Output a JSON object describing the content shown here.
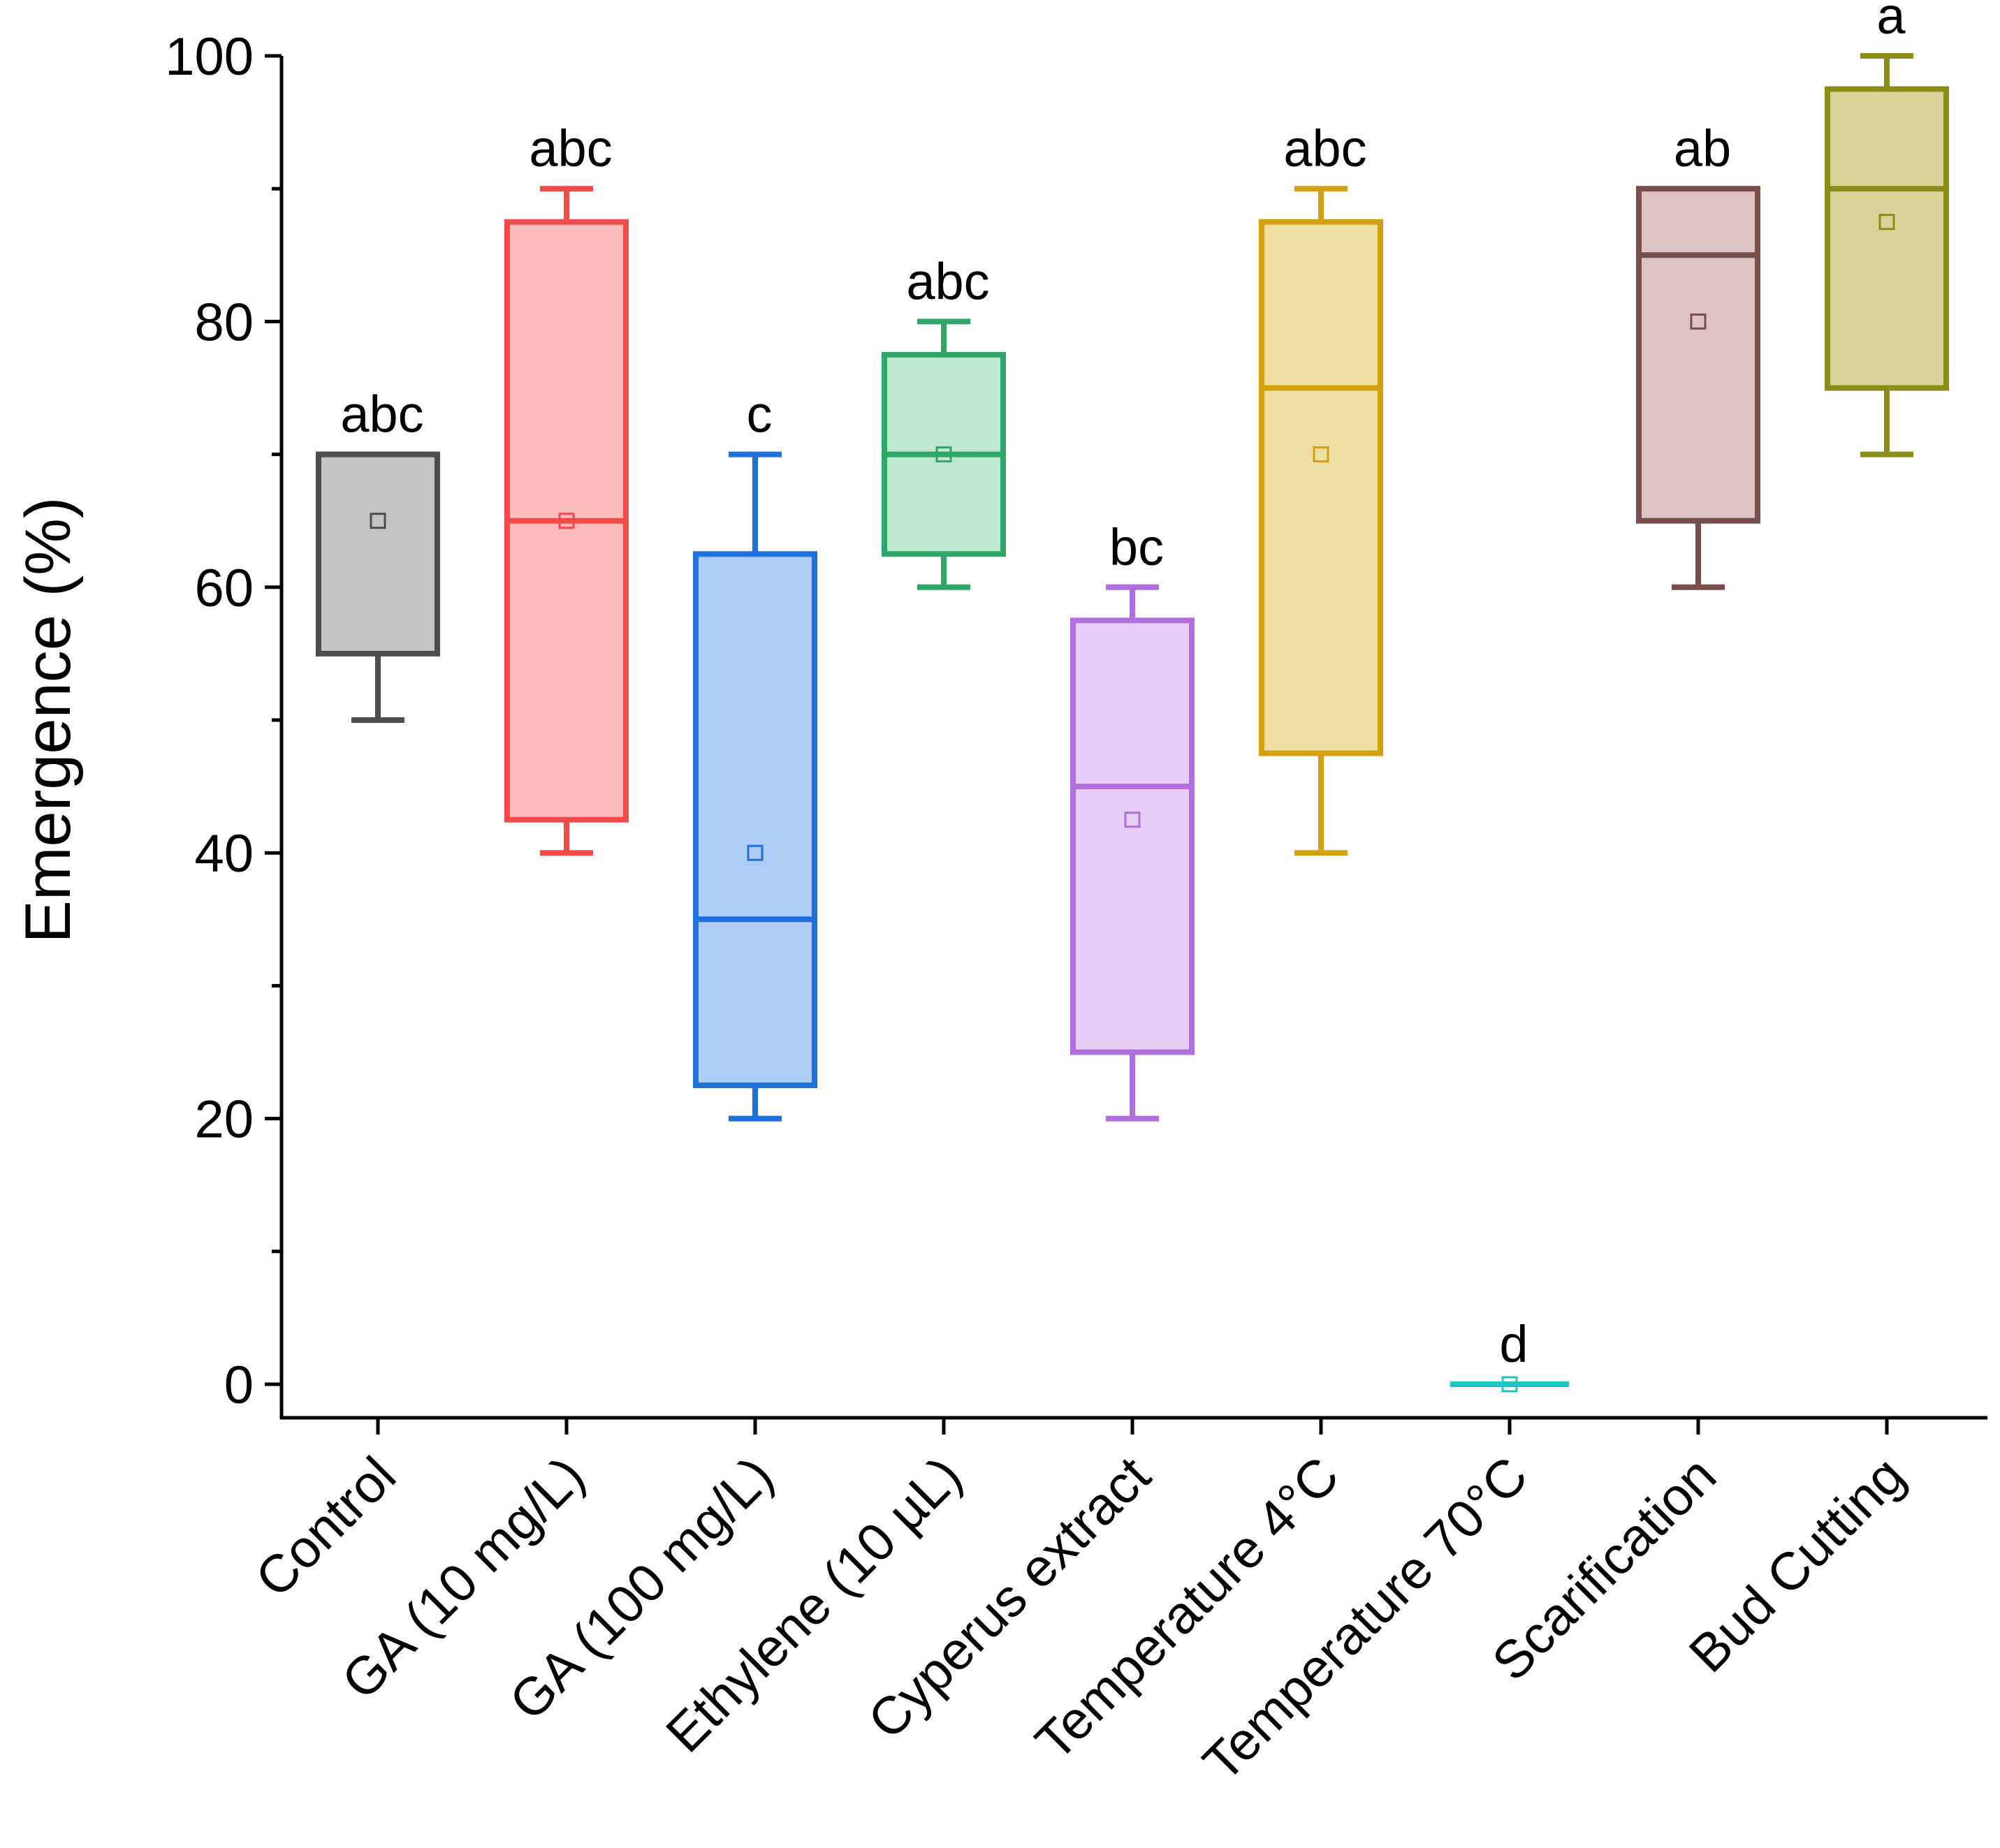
{
  "chart_data": {
    "type": "box",
    "title": "",
    "xlabel": "",
    "ylabel": "Emergence (%)",
    "ylim": [
      0,
      100
    ],
    "yticks": [
      0,
      20,
      40,
      60,
      80,
      100
    ],
    "yticks_minor": [
      10,
      30,
      50,
      70,
      90
    ],
    "ytick_labels": [
      "0",
      "20",
      "40",
      "60",
      "80",
      "100"
    ],
    "categories": [
      "Control",
      "GA (10 mg/L)",
      "GA (100 mg/L)",
      "Ethylene (10 µL)",
      "Cyperus extract",
      "Temperature 4°C",
      "Temperature 70°C",
      "Scarification",
      "Bud Cutting"
    ],
    "series": [
      {
        "name": "Control",
        "min": 50,
        "q1": 55,
        "median": 70,
        "q3": 70,
        "max": 70,
        "mean": 65,
        "letter": "abc",
        "stroke": "#4d4d4d",
        "fill": "#c4c4c4"
      },
      {
        "name": "GA (10 mg/L)",
        "min": 40,
        "q1": 42.5,
        "median": 65,
        "q3": 87.5,
        "max": 90,
        "mean": 65,
        "letter": "abc",
        "stroke": "#f24949",
        "fill": "#fdbcbc"
      },
      {
        "name": "GA (100 mg/L)",
        "min": 20,
        "q1": 22.5,
        "median": 35,
        "q3": 62.5,
        "max": 70,
        "mean": 40,
        "letter": "c",
        "stroke": "#1f6fdc",
        "fill": "#aecdf6"
      },
      {
        "name": "Ethylene (10 µL)",
        "min": 60,
        "q1": 62.5,
        "median": 70,
        "q3": 77.5,
        "max": 80,
        "mean": 70,
        "letter": "abc",
        "stroke": "#2ea665",
        "fill": "#bfe8d2"
      },
      {
        "name": "Cyperus extract",
        "min": 20,
        "q1": 25,
        "median": 45,
        "q3": 57.5,
        "max": 60,
        "mean": 42.5,
        "letter": "bc",
        "stroke": "#b06fdc",
        "fill": "#e6cdf5"
      },
      {
        "name": "Temperature 4°C",
        "min": 40,
        "q1": 47.5,
        "median": 75,
        "q3": 87.5,
        "max": 90,
        "mean": 70,
        "letter": "abc",
        "stroke": "#d4a10e",
        "fill": "#f0dfa3"
      },
      {
        "name": "Temperature 70°C",
        "min": 0,
        "q1": 0,
        "median": 0,
        "q3": 0,
        "max": 0,
        "mean": 0,
        "letter": "d",
        "stroke": "#1fc4c4",
        "fill": "#a8ecec"
      },
      {
        "name": "Scarification",
        "min": 60,
        "q1": 65,
        "median": 85,
        "q3": 90,
        "max": 90,
        "mean": 80,
        "letter": "ab",
        "stroke": "#7a4d4d",
        "fill": "#dcc4c4"
      },
      {
        "name": "Bud Cutting",
        "min": 70,
        "q1": 75,
        "median": 90,
        "q3": 97.5,
        "max": 100,
        "mean": 87.5,
        "letter": "a",
        "stroke": "#8c8c1a",
        "fill": "#d9d49a"
      }
    ]
  }
}
